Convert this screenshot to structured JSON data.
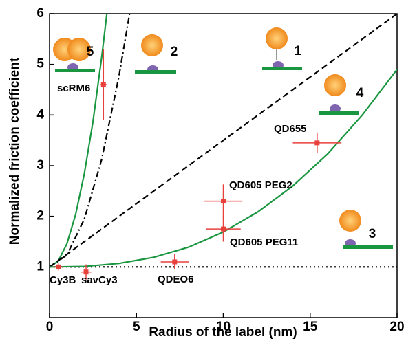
{
  "chart_data": {
    "type": "scatter",
    "xlabel": "Radius of the label (nm)",
    "ylabel": "Normalized friction coefficient",
    "xlim": [
      0,
      20
    ],
    "ylim": [
      0,
      6
    ],
    "xticks": [
      0,
      5,
      10,
      15,
      20
    ],
    "yticks": [
      1,
      2,
      3,
      4,
      5,
      6
    ],
    "series": [
      {
        "color": "#e8413c",
        "labels": [
          "Cy3B",
          "savCy3",
          "QDEO6",
          "QD605 PEG11",
          "QD605 PEG2",
          "QD655",
          "scRM6"
        ],
        "x": [
          0.5,
          2.1,
          7.2,
          10,
          10,
          15.4,
          3.1
        ],
        "values": [
          1.0,
          0.9,
          1.1,
          1.75,
          2.3,
          3.45,
          4.6
        ],
        "xerr": [
          0.3,
          0.3,
          0.8,
          1.0,
          1.1,
          1.4,
          0.2
        ],
        "yerr": [
          0.07,
          0.15,
          0.15,
          0.25,
          0.33,
          0.2,
          0.7
        ]
      }
    ],
    "lines": [
      {
        "color": "#1a9641",
        "style": "solid",
        "x": [
          0,
          0.5,
          1,
          1.5,
          2,
          2.5,
          3,
          3.3
        ],
        "values": [
          1,
          1.115,
          1.46,
          2.035,
          2.84,
          3.875,
          5.14,
          6.01
        ]
      },
      {
        "color": "#000000",
        "style": "dashdot",
        "x": [
          0,
          1,
          2,
          3,
          4,
          4.6
        ],
        "values": [
          1,
          1.236,
          1.944,
          3.124,
          4.776,
          5.99
        ]
      },
      {
        "color": "#000000",
        "style": "dashed",
        "x": [
          0,
          20
        ],
        "values": [
          1,
          6
        ]
      },
      {
        "color": "#000000",
        "style": "dotted",
        "x": [
          0,
          20
        ],
        "values": [
          1,
          1
        ]
      },
      {
        "color": "#1a9641",
        "style": "solid",
        "x": [
          0,
          2,
          4,
          6,
          8,
          10,
          12,
          14,
          16,
          18,
          20
        ],
        "values": [
          1,
          1.01,
          1.07,
          1.19,
          1.39,
          1.69,
          2.09,
          2.6,
          3.23,
          4.0,
          4.9
        ]
      }
    ],
    "icons": [
      "5",
      "2",
      "1",
      "4",
      "3"
    ]
  }
}
